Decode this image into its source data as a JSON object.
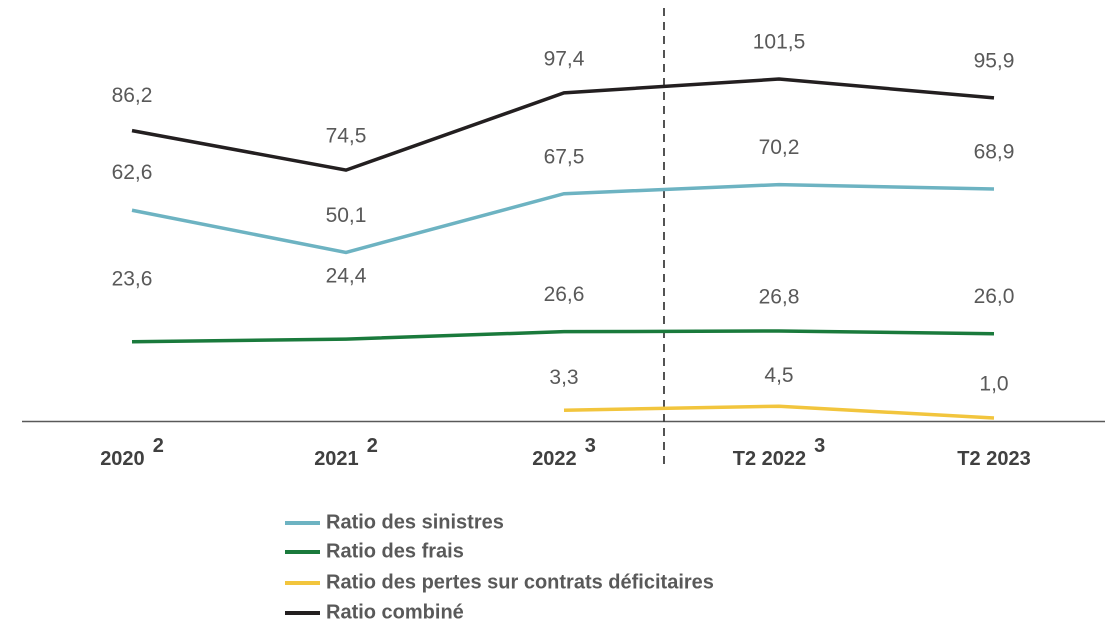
{
  "chart_data": {
    "type": "line",
    "categories": [
      "2020",
      "2021",
      "2022",
      "T2 2022",
      "T2 2023"
    ],
    "category_notes": [
      "2",
      "2",
      "3",
      "3",
      null
    ],
    "series": [
      {
        "name": "Ratio des sinistres",
        "color": "#6db3c2",
        "values": [
          62.6,
          50.1,
          67.5,
          70.2,
          68.9
        ],
        "value_labels": [
          "62,6",
          "50,1",
          "67,5",
          "70,2",
          "68,9"
        ]
      },
      {
        "name": "Ratio des frais",
        "color": "#1a7a3c",
        "values": [
          23.6,
          24.4,
          26.6,
          26.8,
          26.0
        ],
        "value_labels": [
          "23,6",
          "24,4",
          "26,6",
          "26,8",
          "26,0"
        ]
      },
      {
        "name": "Ratio des pertes sur contrats déficitaires",
        "color": "#f2c53d",
        "values": [
          null,
          null,
          3.3,
          4.5,
          1.0
        ],
        "value_labels": [
          null,
          null,
          "3,3",
          "4,5",
          "1,0"
        ]
      },
      {
        "name": "Ratio combiné",
        "color": "#231f20",
        "values": [
          86.2,
          74.5,
          97.4,
          101.5,
          95.9
        ],
        "value_labels": [
          "86,2",
          "74,5",
          "97,4",
          "101,5",
          "95,9"
        ]
      }
    ]
  }
}
